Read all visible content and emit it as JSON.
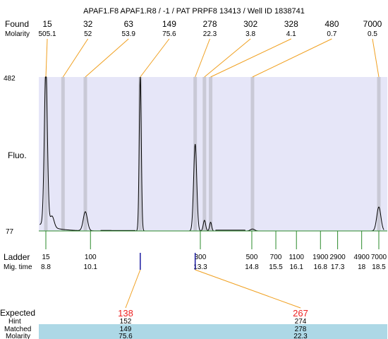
{
  "title": "APAF1.F8  APAF1.R8 / -1 / PAT PRPF8 13413 / Well ID 1838741",
  "labels": {
    "found": "Found",
    "molarity": "Molarity",
    "fluo": "Fluo.",
    "ladder": "Ladder",
    "mig_time": "Mig. time",
    "expected": "Expected",
    "hint": "Hint",
    "matched": "Matched",
    "molarity_bottom": "Molarity"
  },
  "colors": {
    "plot_bg": "#e6e6f8",
    "band": "#c9c9d6",
    "trace": "#000000",
    "connector": "#f0a020",
    "ladder_tick": "#2a8a2a",
    "marker": "#1a1aa0",
    "expected_text": "#ee2222",
    "table_band": "#add8e6"
  },
  "chart_data": {
    "type": "line",
    "y_axis_labels": {
      "top": "482",
      "bottom": "77"
    },
    "ylim": [
      77,
      482
    ],
    "found_peaks": [
      {
        "size": "15",
        "molarity": "505.1",
        "time": 8.8
      },
      {
        "size": "32",
        "molarity": "52",
        "time": 9.3
      },
      {
        "size": "63",
        "molarity": "53.9",
        "time": 9.95
      },
      {
        "size": "149",
        "molarity": "75.6",
        "time": 11.55
      },
      {
        "size": "278",
        "molarity": "22.3",
        "time": 13.15
      },
      {
        "size": "302",
        "molarity": "3.8",
        "time": 13.42
      },
      {
        "size": "328",
        "molarity": "4.1",
        "time": 13.6
      },
      {
        "size": "480",
        "molarity": "0.7",
        "time": 14.82
      },
      {
        "size": "7000",
        "molarity": "0.5",
        "time": 18.5
      }
    ],
    "bands": [
      8.8,
      9.3,
      9.95,
      11.55,
      13.15,
      13.42,
      13.6,
      14.82,
      18.5
    ],
    "ladder": [
      {
        "size": "15",
        "time": "8.8"
      },
      {
        "size": "100",
        "time": "10.1"
      },
      {
        "size": "300",
        "time": "13.3"
      },
      {
        "size": "500",
        "time": "14.8"
      },
      {
        "size": "700",
        "time": "15.5"
      },
      {
        "size": "1100",
        "time": "16.1"
      },
      {
        "size": "1900",
        "time": "16.8"
      },
      {
        "size": "2900",
        "time": "17.3"
      },
      {
        "size": "4900",
        "time": "18"
      },
      {
        "size": "7000",
        "time": "18.5"
      }
    ],
    "expected_markers": [
      {
        "expected": "138",
        "hint": "152",
        "matched": "149",
        "molarity": "75.6",
        "time": 11.55
      },
      {
        "expected": "267",
        "hint": "274",
        "matched": "278",
        "molarity": "22.3",
        "time": 13.15
      }
    ],
    "trace_peaks": [
      {
        "time": 8.8,
        "height": 482,
        "width": 0.045
      },
      {
        "time": 8.98,
        "height": 106,
        "width": 0.06
      },
      {
        "time": 9.95,
        "height": 127,
        "width": 0.06
      },
      {
        "time": 11.55,
        "height": 482,
        "width": 0.03
      },
      {
        "time": 13.15,
        "height": 305,
        "width": 0.045
      },
      {
        "time": 13.42,
        "height": 105,
        "width": 0.035
      },
      {
        "time": 13.6,
        "height": 100,
        "width": 0.03
      },
      {
        "time": 14.82,
        "height": 82,
        "width": 0.06
      },
      {
        "time": 18.5,
        "height": 140,
        "width": 0.06
      }
    ],
    "trace_baseline": 77,
    "trace_start_level": 94
  }
}
